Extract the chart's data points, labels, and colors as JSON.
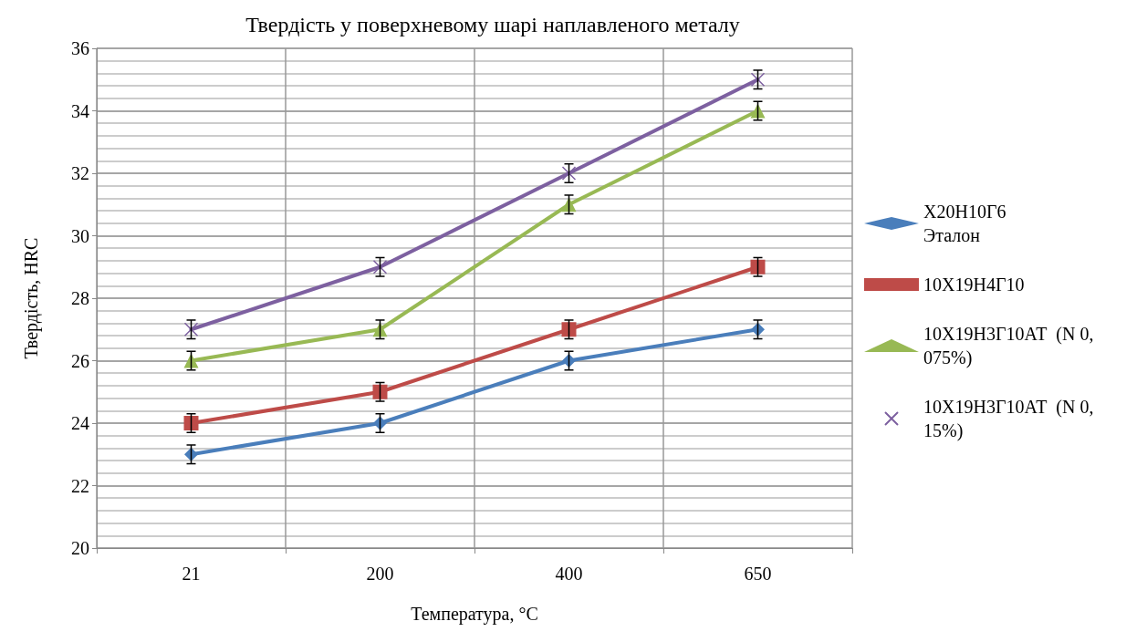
{
  "chart_data": {
    "type": "line",
    "title": "Твердість у поверхневому шарі наплавленого металу",
    "xlabel": "Температура, °С",
    "ylabel": "Твердість, HRC",
    "categories": [
      "21",
      "200",
      "400",
      "650"
    ],
    "series": [
      {
        "name": "Х20Н10Г6 Эталон",
        "color": "#4a7ebb",
        "marker": "diamond",
        "values": [
          23,
          24,
          26,
          27
        ],
        "errors": [
          0.3,
          0.3,
          0.3,
          0.3
        ]
      },
      {
        "name": "10Х19Н4Г10",
        "color": "#be4b48",
        "marker": "square",
        "values": [
          24,
          25,
          27,
          29
        ],
        "errors": [
          0.3,
          0.3,
          0.3,
          0.3
        ]
      },
      {
        "name": "10Х19Н3Г10АТ  (N 0,075%)",
        "color": "#98b954",
        "marker": "triangle",
        "values": [
          26,
          27,
          31,
          34
        ],
        "errors": [
          0.3,
          0.3,
          0.3,
          0.3
        ]
      },
      {
        "name": "10Х19Н3Г10АТ  (N 0,15%)",
        "color": "#7d60a0",
        "marker": "cross",
        "values": [
          27,
          29,
          32,
          35
        ],
        "errors": [
          0.3,
          0.3,
          0.3,
          0.3
        ]
      }
    ],
    "ylim": [
      20,
      36
    ],
    "yticks": [
      20,
      22,
      24,
      26,
      28,
      30,
      32,
      34,
      36
    ],
    "grid": true,
    "legend": "right"
  }
}
